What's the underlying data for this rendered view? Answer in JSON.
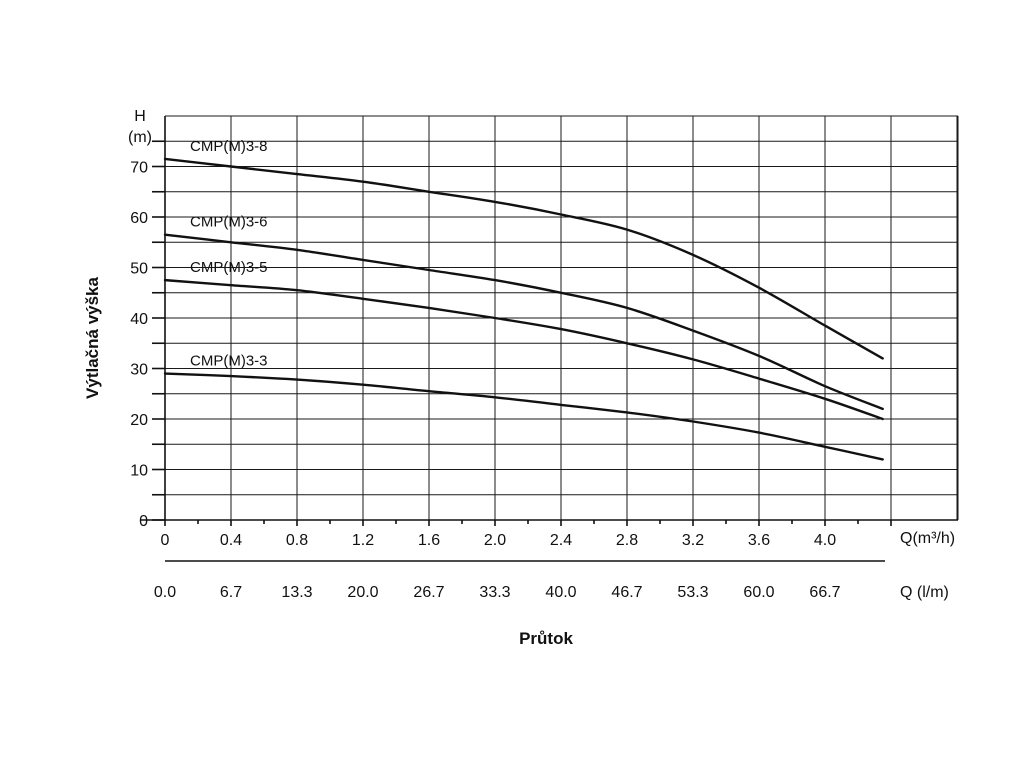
{
  "chart_data": {
    "type": "line",
    "ylabel": "Výtlačná výška",
    "xlabel": "Průtok",
    "y_unit_top": "H",
    "y_unit_bottom": "(m)",
    "x_unit_primary": "Q(m³/h)",
    "x_unit_secondary": "Q (l/m)",
    "ylim": [
      0,
      80
    ],
    "xlim": [
      0,
      4.8
    ],
    "y_ticks": [
      0,
      10,
      20,
      30,
      40,
      50,
      60,
      70
    ],
    "x_ticks": [
      0,
      0.4,
      0.8,
      1.2,
      1.6,
      2.0,
      2.4,
      2.8,
      3.2,
      3.6,
      4.0
    ],
    "x_tick_labels": [
      "0",
      "0.4",
      "0.8",
      "1.2",
      "1.6",
      "2.0",
      "2.4",
      "2.8",
      "3.2",
      "3.6",
      "4.0"
    ],
    "x2_tick_labels": [
      "0.0",
      "6.7",
      "13.3",
      "20.0",
      "26.7",
      "33.3",
      "40.0",
      "46.7",
      "53.3",
      "60.0",
      "66.7"
    ],
    "grid": true,
    "series": [
      {
        "name": "CMP(M)3-8",
        "x": [
          0,
          0.4,
          0.8,
          1.2,
          1.6,
          2.0,
          2.4,
          2.8,
          3.2,
          3.6,
          4.0,
          4.35
        ],
        "y": [
          71.5,
          70,
          68.5,
          67,
          65,
          63,
          60.5,
          57.5,
          52.5,
          46,
          38.5,
          32
        ]
      },
      {
        "name": "CMP(M)3-6",
        "x": [
          0,
          0.4,
          0.8,
          1.2,
          1.6,
          2.0,
          2.4,
          2.8,
          3.2,
          3.6,
          4.0,
          4.35
        ],
        "y": [
          56.5,
          55,
          53.5,
          51.5,
          49.5,
          47.5,
          45,
          42,
          37.5,
          32.5,
          26.5,
          22
        ]
      },
      {
        "name": "CMP(M)3-5",
        "x": [
          0,
          0.4,
          0.8,
          1.2,
          1.6,
          2.0,
          2.4,
          2.8,
          3.2,
          3.6,
          4.0,
          4.35
        ],
        "y": [
          47.5,
          46.5,
          45.5,
          43.8,
          42,
          40,
          37.8,
          35,
          31.8,
          28,
          24,
          20
        ]
      },
      {
        "name": "CMP(M)3-3",
        "x": [
          0,
          0.4,
          0.8,
          1.2,
          1.6,
          2.0,
          2.4,
          2.8,
          3.2,
          3.6,
          4.0,
          4.35
        ],
        "y": [
          29,
          28.5,
          27.8,
          26.8,
          25.5,
          24.3,
          22.8,
          21.3,
          19.5,
          17.3,
          14.5,
          12
        ]
      }
    ]
  }
}
